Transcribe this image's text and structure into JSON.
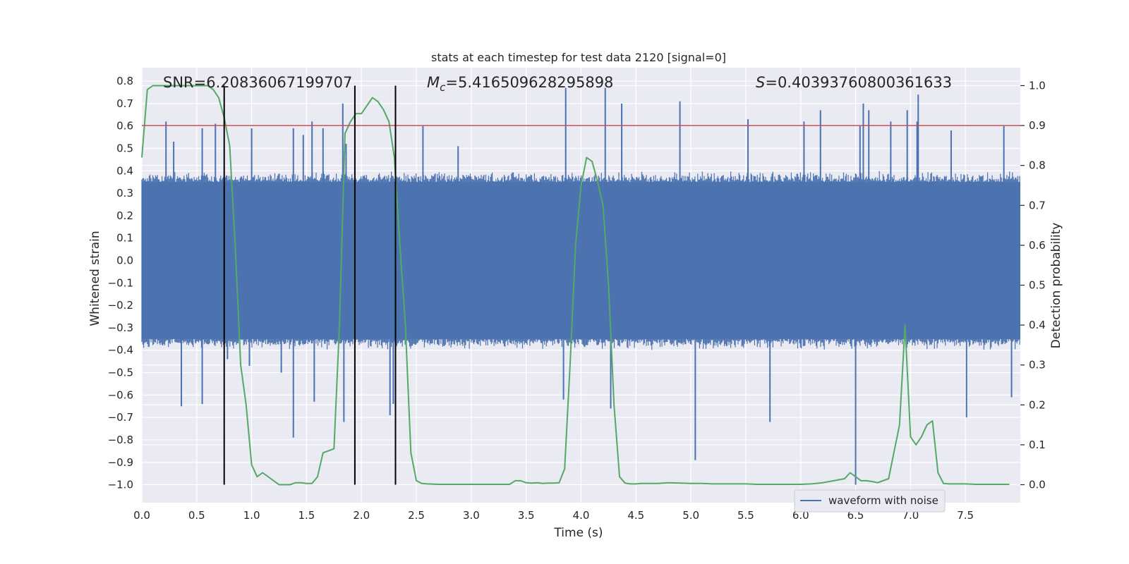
{
  "colors": {
    "background": "#ffffff",
    "axes_face": "#eaeaf2",
    "grid": "#ffffff",
    "waveform": "#4c72b0",
    "probability": "#55a868",
    "threshold": "#c44e52",
    "markers": "#000000"
  },
  "chart_data": {
    "type": "line",
    "title": "stats at each timestep for test data 2120 [signal=0]",
    "xlabel": "Time (s)",
    "ylabel": "Whitened strain",
    "y2label": "Detection probability",
    "xlim": [
      0.0,
      8.0
    ],
    "ylim": [
      -1.08,
      0.86
    ],
    "y2lim": [
      -0.045,
      1.045
    ],
    "grid": true,
    "legend_position": "bottom-right",
    "xticks": [
      0.0,
      0.5,
      1.0,
      1.5,
      2.0,
      2.5,
      3.0,
      3.5,
      4.0,
      4.5,
      5.0,
      5.5,
      6.0,
      6.5,
      7.0,
      7.5
    ],
    "xtick_labels": [
      "0.0",
      "0.5",
      "1.0",
      "1.5",
      "2.0",
      "2.5",
      "3.0",
      "3.5",
      "4.0",
      "4.5",
      "5.0",
      "5.5",
      "6.0",
      "6.5",
      "7.0",
      "7.5"
    ],
    "yticks": [
      0.8,
      0.7,
      0.6,
      0.5,
      0.4,
      0.3,
      0.2,
      0.1,
      0.0,
      -0.1,
      -0.2,
      -0.3,
      -0.4,
      -0.5,
      -0.6,
      -0.7,
      -0.8,
      -0.9,
      -1.0
    ],
    "ytick_labels": [
      "0.8",
      "0.7",
      "0.6",
      "0.5",
      "0.4",
      "0.3",
      "0.2",
      "0.1",
      "0.0",
      "−0.1",
      "−0.2",
      "−0.3",
      "−0.4",
      "−0.5",
      "−0.6",
      "−0.7",
      "−0.8",
      "−0.9",
      "−1.0"
    ],
    "y2ticks": [
      1.0,
      0.9,
      0.8,
      0.7,
      0.6,
      0.5,
      0.4,
      0.3,
      0.2,
      0.1,
      0.0
    ],
    "y2tick_labels": [
      "1.0",
      "0.9",
      "0.8",
      "0.7",
      "0.6",
      "0.5",
      "0.4",
      "0.3",
      "0.2",
      "0.1",
      "0.0"
    ],
    "annotations": {
      "snr_text": "SNR=6.20836067199707",
      "mc_prefix": "M",
      "mc_sub": "c",
      "mc_value": "=5.416509628295898",
      "s_prefix": "S",
      "s_value": "=0.40393760800361633"
    },
    "threshold_y2": 0.9,
    "vertical_markers_x": [
      0.75,
      1.94,
      2.31
    ],
    "vertical_markers_ymax": 0.78,
    "waveform": {
      "name": "waveform with noise",
      "core_range": [
        -0.35,
        0.35
      ],
      "noise_amplitude": 0.4,
      "spikes": [
        {
          "x": 0.22,
          "y": 0.62
        },
        {
          "x": 0.29,
          "y": 0.53
        },
        {
          "x": 0.36,
          "y": -0.65
        },
        {
          "x": 0.55,
          "y": 0.59
        },
        {
          "x": 0.55,
          "y": -0.64
        },
        {
          "x": 0.67,
          "y": 0.61
        },
        {
          "x": 0.78,
          "y": -0.44
        },
        {
          "x": 0.98,
          "y": -0.47
        },
        {
          "x": 1.0,
          "y": 0.59
        },
        {
          "x": 1.27,
          "y": -0.5
        },
        {
          "x": 1.38,
          "y": 0.59
        },
        {
          "x": 1.38,
          "y": -0.79
        },
        {
          "x": 1.47,
          "y": 0.56
        },
        {
          "x": 1.55,
          "y": 0.62
        },
        {
          "x": 1.57,
          "y": -0.63
        },
        {
          "x": 1.65,
          "y": 0.59
        },
        {
          "x": 1.83,
          "y": 0.7
        },
        {
          "x": 1.84,
          "y": -0.72
        },
        {
          "x": 1.86,
          "y": 0.52
        },
        {
          "x": 2.26,
          "y": -0.69
        },
        {
          "x": 2.29,
          "y": -0.64
        },
        {
          "x": 2.31,
          "y": 0.65
        },
        {
          "x": 2.56,
          "y": 0.6
        },
        {
          "x": 2.88,
          "y": 0.51
        },
        {
          "x": 3.84,
          "y": -0.62
        },
        {
          "x": 3.86,
          "y": 0.77
        },
        {
          "x": 4.22,
          "y": 0.77
        },
        {
          "x": 4.27,
          "y": -0.66
        },
        {
          "x": 4.37,
          "y": 0.7
        },
        {
          "x": 4.9,
          "y": 0.71
        },
        {
          "x": 5.04,
          "y": -0.89
        },
        {
          "x": 5.52,
          "y": 0.63
        },
        {
          "x": 5.72,
          "y": -0.72
        },
        {
          "x": 6.03,
          "y": 0.62
        },
        {
          "x": 6.18,
          "y": 0.67
        },
        {
          "x": 6.5,
          "y": -1.0
        },
        {
          "x": 6.54,
          "y": 0.6
        },
        {
          "x": 6.57,
          "y": 0.7
        },
        {
          "x": 6.62,
          "y": 0.67
        },
        {
          "x": 6.82,
          "y": 0.62
        },
        {
          "x": 6.97,
          "y": 0.67
        },
        {
          "x": 7.06,
          "y": 0.62
        },
        {
          "x": 7.07,
          "y": 0.74
        },
        {
          "x": 7.37,
          "y": 0.58
        },
        {
          "x": 7.51,
          "y": -0.7
        },
        {
          "x": 7.85,
          "y": 0.6
        },
        {
          "x": 7.92,
          "y": -0.61
        }
      ]
    },
    "probability": {
      "x": [
        0.0,
        0.05,
        0.1,
        0.2,
        0.3,
        0.4,
        0.5,
        0.6,
        0.65,
        0.7,
        0.75,
        0.8,
        0.85,
        0.9,
        0.95,
        1.0,
        1.05,
        1.1,
        1.15,
        1.2,
        1.25,
        1.3,
        1.35,
        1.4,
        1.45,
        1.5,
        1.55,
        1.6,
        1.65,
        1.7,
        1.75,
        1.8,
        1.85,
        1.9,
        1.95,
        2.0,
        2.05,
        2.1,
        2.15,
        2.2,
        2.25,
        2.3,
        2.35,
        2.4,
        2.45,
        2.5,
        2.55,
        2.6,
        2.7,
        2.8,
        2.9,
        3.0,
        3.1,
        3.2,
        3.3,
        3.35,
        3.4,
        3.45,
        3.5,
        3.55,
        3.6,
        3.65,
        3.7,
        3.75,
        3.8,
        3.85,
        3.9,
        3.95,
        4.0,
        4.05,
        4.1,
        4.15,
        4.2,
        4.25,
        4.3,
        4.35,
        4.4,
        4.45,
        4.5,
        4.55,
        4.6,
        4.7,
        4.8,
        4.9,
        5.0,
        5.1,
        5.2,
        5.3,
        5.4,
        5.5,
        5.6,
        5.7,
        5.8,
        5.9,
        6.0,
        6.1,
        6.2,
        6.3,
        6.4,
        6.45,
        6.5,
        6.55,
        6.6,
        6.65,
        6.7,
        6.8,
        6.9,
        6.95,
        7.0,
        7.05,
        7.1,
        7.15,
        7.2,
        7.25,
        7.3,
        7.35,
        7.4,
        7.5,
        7.6,
        7.7,
        7.8,
        7.9
      ],
      "y": [
        0.82,
        0.99,
        1.0,
        1.0,
        1.0,
        1.0,
        1.0,
        1.0,
        0.99,
        0.97,
        0.92,
        0.85,
        0.6,
        0.3,
        0.2,
        0.05,
        0.02,
        0.03,
        0.02,
        0.01,
        0.0,
        0.0,
        0.0,
        0.005,
        0.005,
        0.003,
        0.003,
        0.02,
        0.08,
        0.085,
        0.09,
        0.4,
        0.88,
        0.91,
        0.93,
        0.93,
        0.95,
        0.97,
        0.96,
        0.94,
        0.91,
        0.82,
        0.6,
        0.4,
        0.08,
        0.01,
        0.003,
        0.002,
        0.001,
        0.001,
        0.001,
        0.001,
        0.001,
        0.001,
        0.001,
        0.001,
        0.01,
        0.01,
        0.005,
        0.004,
        0.005,
        0.003,
        0.004,
        0.004,
        0.005,
        0.04,
        0.3,
        0.6,
        0.75,
        0.82,
        0.81,
        0.76,
        0.7,
        0.5,
        0.2,
        0.02,
        0.004,
        0.002,
        0.002,
        0.003,
        0.003,
        0.003,
        0.005,
        0.004,
        0.003,
        0.003,
        0.002,
        0.002,
        0.002,
        0.002,
        0.001,
        0.001,
        0.001,
        0.001,
        0.001,
        0.002,
        0.005,
        0.01,
        0.015,
        0.03,
        0.02,
        0.01,
        0.01,
        0.008,
        0.005,
        0.015,
        0.15,
        0.4,
        0.12,
        0.1,
        0.12,
        0.15,
        0.16,
        0.03,
        0.003,
        0.002,
        0.002,
        0.002,
        0.001,
        0.001,
        0.001,
        0.001
      ]
    }
  }
}
